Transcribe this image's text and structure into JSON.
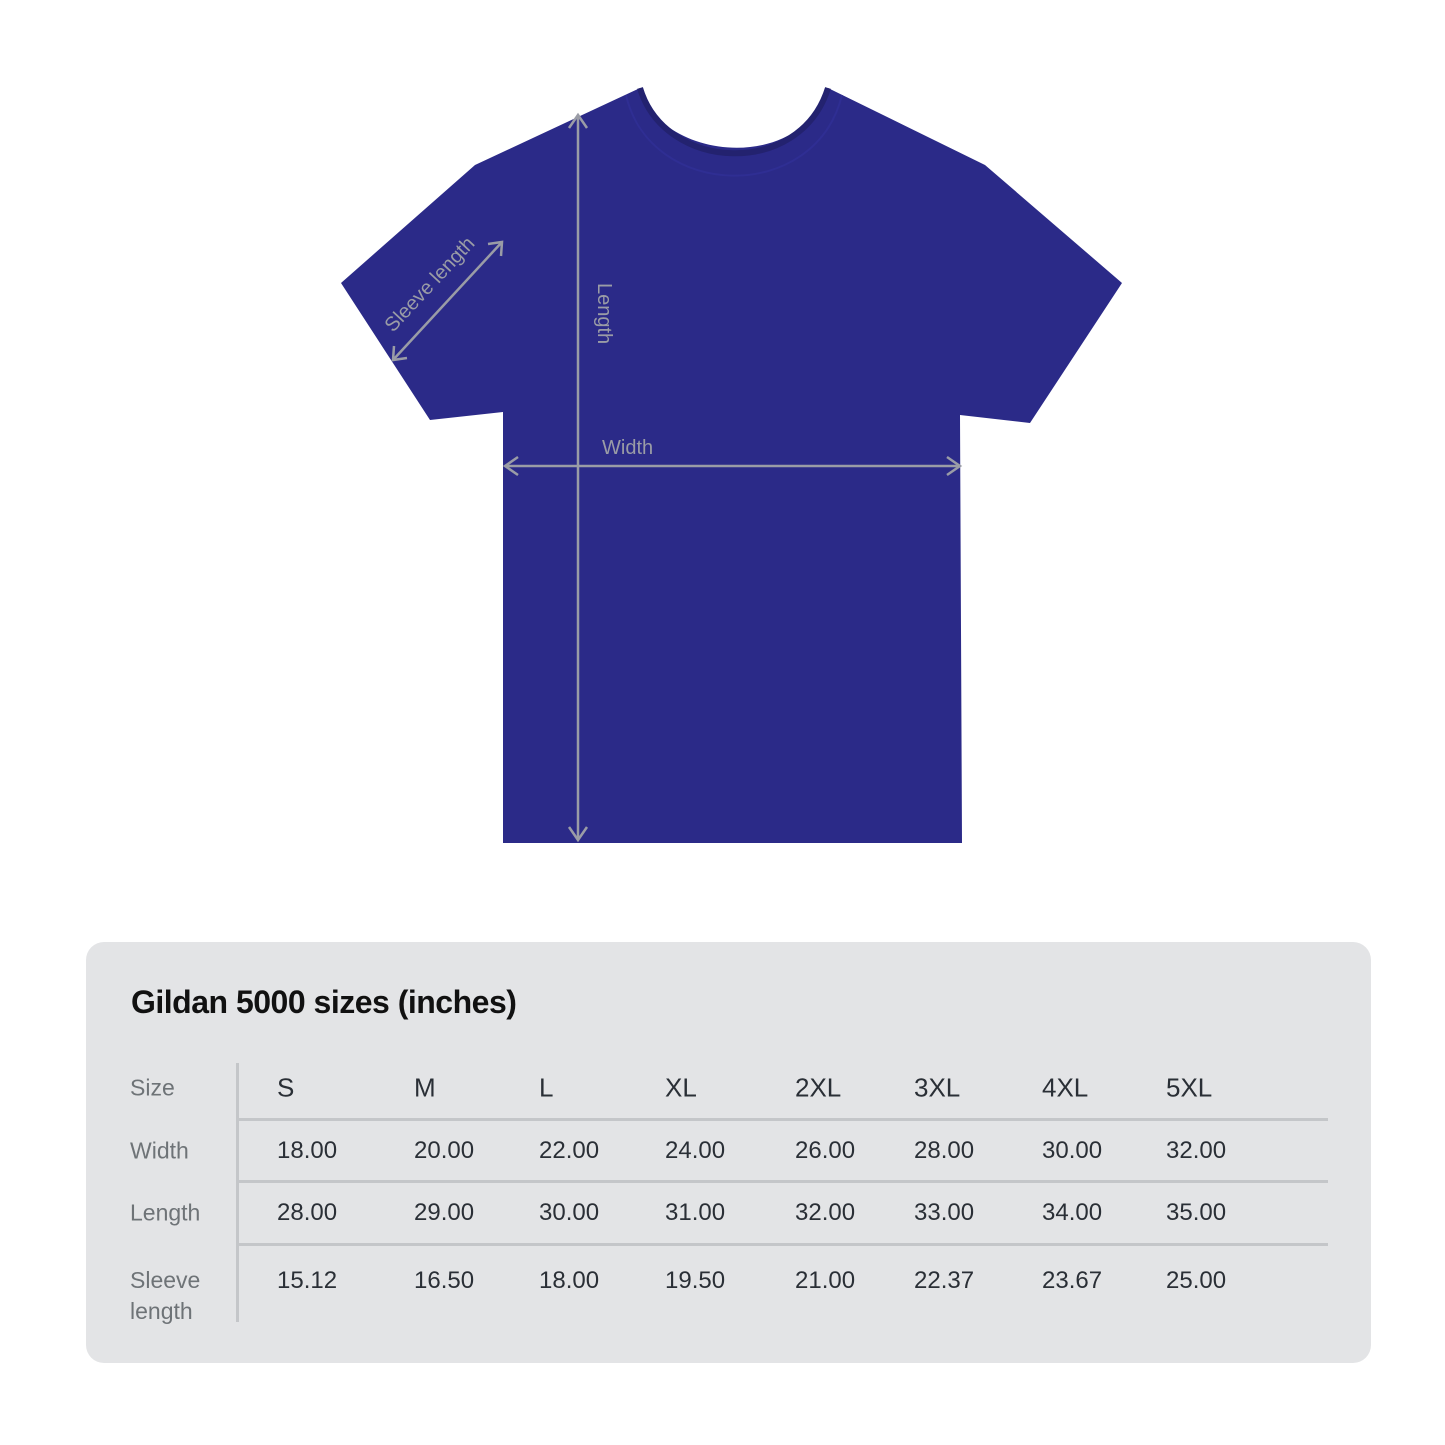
{
  "diagram": {
    "shirt_color": "#2b2a88",
    "measure_color": "#9a9ca6",
    "labels": {
      "sleeve": "Sleeve length",
      "length": "Length",
      "width": "Width"
    }
  },
  "table": {
    "title": "Gildan 5000 sizes (inches)",
    "row_labels": [
      "Size",
      "Width",
      "Length",
      "Sleeve length"
    ],
    "sizes": [
      "S",
      "M",
      "L",
      "XL",
      "2XL",
      "3XL",
      "4XL",
      "5XL"
    ],
    "rows": [
      [
        "18.00",
        "20.00",
        "22.00",
        "24.00",
        "26.00",
        "28.00",
        "30.00",
        "32.00"
      ],
      [
        "28.00",
        "29.00",
        "30.00",
        "31.00",
        "32.00",
        "33.00",
        "34.00",
        "35.00"
      ],
      [
        "15.12",
        "16.50",
        "18.00",
        "19.50",
        "21.00",
        "22.37",
        "23.67",
        "25.00"
      ]
    ]
  }
}
